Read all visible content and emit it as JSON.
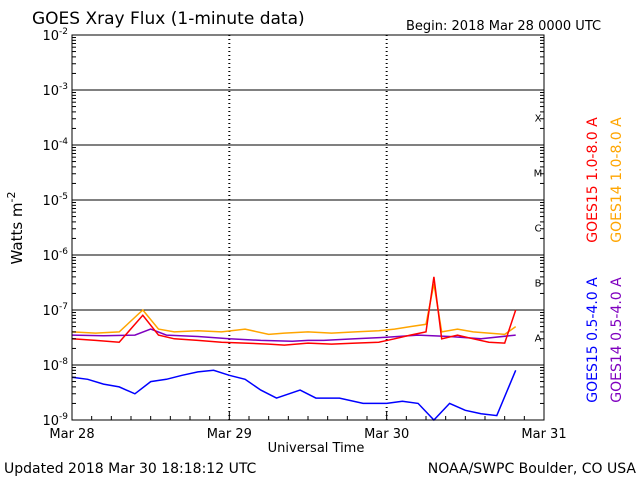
{
  "chart_data": {
    "type": "line",
    "title": "GOES Xray Flux (1-minute data)",
    "begin_label": "Begin:  2018 Mar 28 0000 UTC",
    "xlabel": "Universal Time",
    "ylabel": "Watts m",
    "ylabel_exponent": "-2",
    "y_scale": "log",
    "ylim": [
      1e-09,
      0.01
    ],
    "y_ticks": [
      {
        "exp": "-2"
      },
      {
        "exp": "-3"
      },
      {
        "exp": "-4"
      },
      {
        "exp": "-5"
      },
      {
        "exp": "-6"
      },
      {
        "exp": "-7"
      },
      {
        "exp": "-8"
      },
      {
        "exp": "-9"
      }
    ],
    "x_ticks": [
      "Mar 28",
      "Mar 29",
      "Mar 30",
      "Mar 31"
    ],
    "xlim_days": [
      0,
      3
    ],
    "flare_classes": [
      "X",
      "M",
      "C",
      "B",
      "A"
    ],
    "grid": true,
    "legend_placement": "right, rotated vertical",
    "series": [
      {
        "name": "GOES15 1.0-8.0 A",
        "color": "#ff0000",
        "x": [
          0,
          0.15,
          0.3,
          0.45,
          0.55,
          0.65,
          0.8,
          0.95,
          1.1,
          1.25,
          1.35,
          1.5,
          1.65,
          1.8,
          1.95,
          2.05,
          2.15,
          2.25,
          2.3,
          2.35,
          2.45,
          2.55,
          2.65,
          2.75,
          2.82
        ],
        "y": [
          3e-08,
          2.8e-08,
          2.6e-08,
          8e-08,
          3.5e-08,
          3e-08,
          2.8e-08,
          2.6e-08,
          2.5e-08,
          2.4e-08,
          2.3e-08,
          2.5e-08,
          2.4e-08,
          2.5e-08,
          2.6e-08,
          3e-08,
          3.5e-08,
          4e-08,
          4e-07,
          3e-08,
          3.5e-08,
          3e-08,
          2.6e-08,
          2.5e-08,
          1e-07
        ]
      },
      {
        "name": "GOES14 1.0-8.0 A",
        "color": "#ffa500",
        "x": [
          0,
          0.15,
          0.3,
          0.45,
          0.55,
          0.65,
          0.8,
          0.95,
          1.1,
          1.25,
          1.35,
          1.5,
          1.65,
          1.8,
          1.95,
          2.05,
          2.15,
          2.25,
          2.3,
          2.35,
          2.45,
          2.55,
          2.65,
          2.75,
          2.82
        ],
        "y": [
          4e-08,
          3.8e-08,
          4e-08,
          1e-07,
          4.5e-08,
          4e-08,
          4.2e-08,
          4e-08,
          4.5e-08,
          3.6e-08,
          3.8e-08,
          4e-08,
          3.8e-08,
          4e-08,
          4.2e-08,
          4.5e-08,
          5e-08,
          5.5e-08,
          3e-07,
          4e-08,
          4.5e-08,
          4e-08,
          3.8e-08,
          3.6e-08,
          5e-08
        ]
      },
      {
        "name": "GOES15 0.5-4.0 A",
        "color": "#0000ff",
        "x": [
          0,
          0.1,
          0.2,
          0.3,
          0.4,
          0.5,
          0.6,
          0.7,
          0.8,
          0.9,
          1.0,
          1.1,
          1.2,
          1.3,
          1.45,
          1.55,
          1.7,
          1.85,
          2.0,
          2.1,
          2.2,
          2.3,
          2.4,
          2.5,
          2.6,
          2.7,
          2.82
        ],
        "y": [
          6e-09,
          5.5e-09,
          4.5e-09,
          4e-09,
          3e-09,
          5e-09,
          5.5e-09,
          6.5e-09,
          7.5e-09,
          8e-09,
          6.5e-09,
          5.5e-09,
          3.5e-09,
          2.5e-09,
          3.5e-09,
          2.5e-09,
          2.5e-09,
          2e-09,
          2e-09,
          2.2e-09,
          2e-09,
          1e-09,
          2e-09,
          1.5e-09,
          1.3e-09,
          1.2e-09,
          8e-09
        ]
      },
      {
        "name": "GOES14 0.5-4.0 A",
        "color": "#7f00bf",
        "x": [
          0,
          0.2,
          0.4,
          0.5,
          0.6,
          0.8,
          1.0,
          1.2,
          1.4,
          1.5,
          1.6,
          1.8,
          2.0,
          2.2,
          2.4,
          2.6,
          2.82
        ],
        "y": [
          3.5e-08,
          3.4e-08,
          3.5e-08,
          4.5e-08,
          3.5e-08,
          3.3e-08,
          3e-08,
          2.8e-08,
          2.7e-08,
          2.8e-08,
          2.8e-08,
          3e-08,
          3.2e-08,
          3.5e-08,
          3.3e-08,
          3e-08,
          3.5e-08
        ]
      }
    ]
  },
  "footer": {
    "updated": "Updated 2018 Mar 30 18:18:12 UTC",
    "credit": "NOAA/SWPC Boulder, CO USA"
  }
}
